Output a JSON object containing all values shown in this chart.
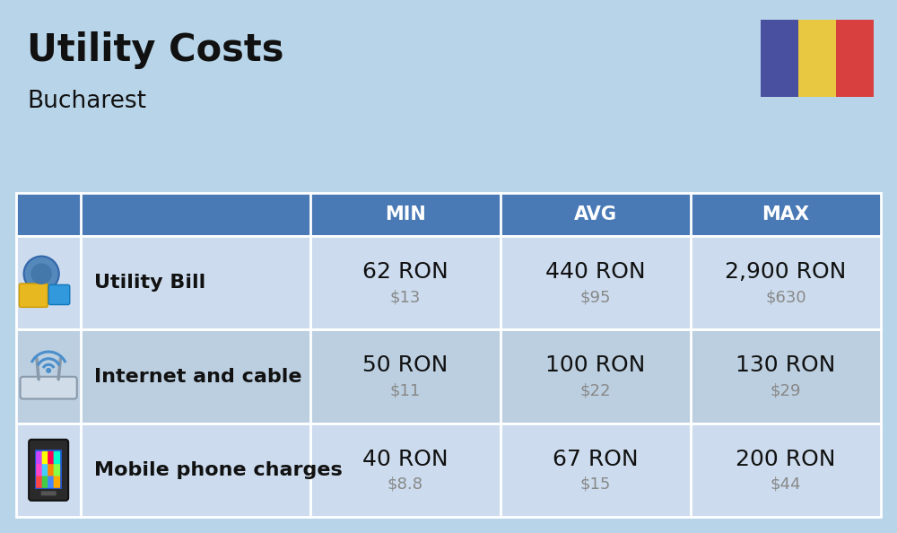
{
  "title": "Utility Costs",
  "subtitle": "Bucharest",
  "background_color": "#b8d4e8",
  "header_bg_color": "#4a7ab5",
  "header_text_color": "#ffffff",
  "row_bg_color_1": "#ccdcee",
  "row_bg_color_2": "#bccfe0",
  "table_border_color": "#ffffff",
  "header_labels": [
    "MIN",
    "AVG",
    "MAX"
  ],
  "rows": [
    {
      "name": "Utility Bill",
      "icon": "utility",
      "min_ron": "62 RON",
      "min_usd": "$13",
      "avg_ron": "440 RON",
      "avg_usd": "$95",
      "max_ron": "2,900 RON",
      "max_usd": "$630"
    },
    {
      "name": "Internet and cable",
      "icon": "internet",
      "min_ron": "50 RON",
      "min_usd": "$11",
      "avg_ron": "100 RON",
      "avg_usd": "$22",
      "max_ron": "130 RON",
      "max_usd": "$29"
    },
    {
      "name": "Mobile phone charges",
      "icon": "mobile",
      "min_ron": "40 RON",
      "min_usd": "$8.8",
      "avg_ron": "67 RON",
      "avg_usd": "$15",
      "max_ron": "200 RON",
      "max_usd": "$44"
    }
  ],
  "flag_colors": [
    "#4a50a0",
    "#e8c840",
    "#d84040"
  ],
  "title_fontsize": 30,
  "subtitle_fontsize": 19,
  "header_fontsize": 15,
  "row_name_fontsize": 16,
  "ron_fontsize": 18,
  "usd_fontsize": 13,
  "usd_color": "#888888",
  "fig_width": 10.0,
  "fig_height": 5.94
}
